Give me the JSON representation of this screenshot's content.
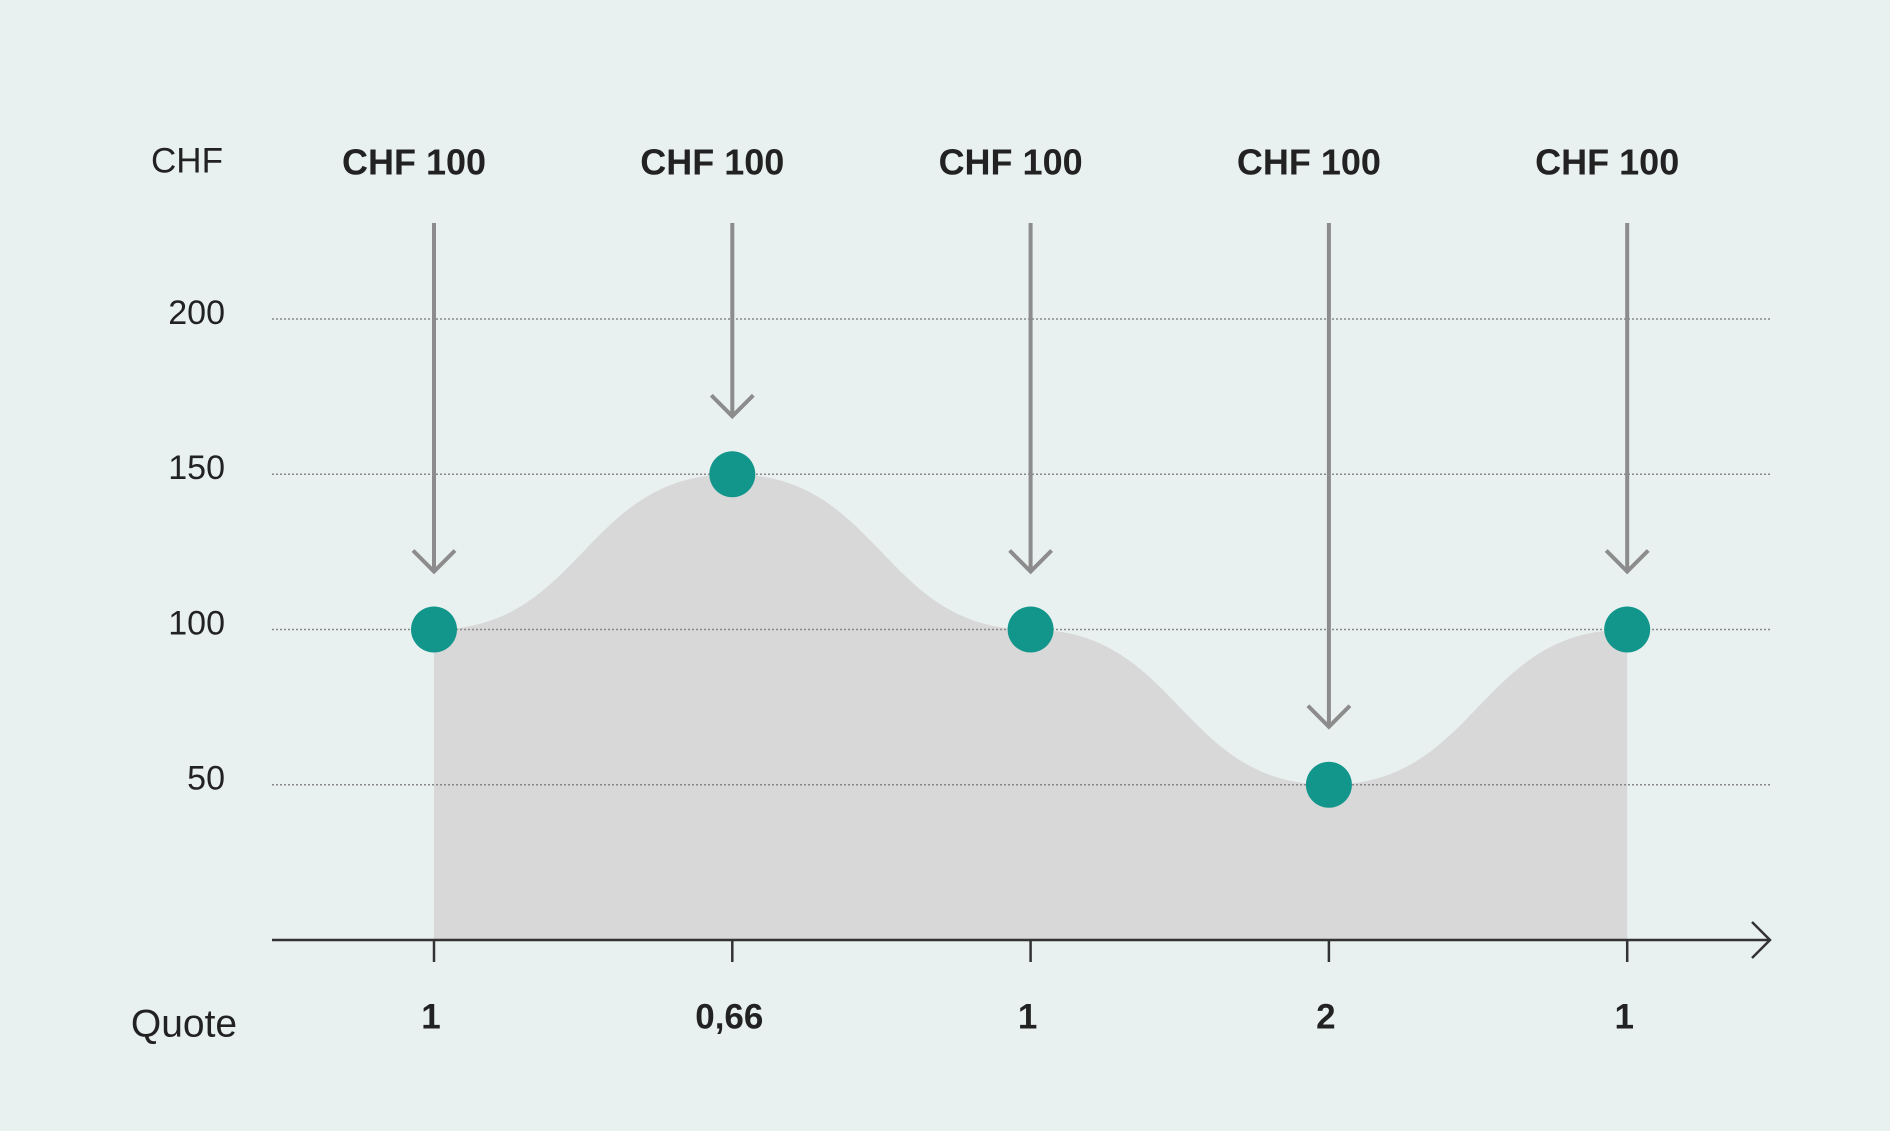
{
  "chart_data": {
    "type": "area",
    "y_label": "CHF",
    "x_label": "Quote",
    "annotations": [
      "CHF 100",
      "CHF 100",
      "CHF 100",
      "CHF 100",
      "CHF 100"
    ],
    "categories": [
      "1",
      "0,66",
      "1",
      "2",
      "1"
    ],
    "values": [
      100,
      150,
      100,
      50,
      100
    ],
    "ylim": [
      0,
      200
    ],
    "yticks": [
      50,
      100,
      150,
      200
    ],
    "grid": true,
    "area_color": "#d8d8d8",
    "point_color": "#12968c",
    "arrow_color": "#8c8c8c"
  }
}
